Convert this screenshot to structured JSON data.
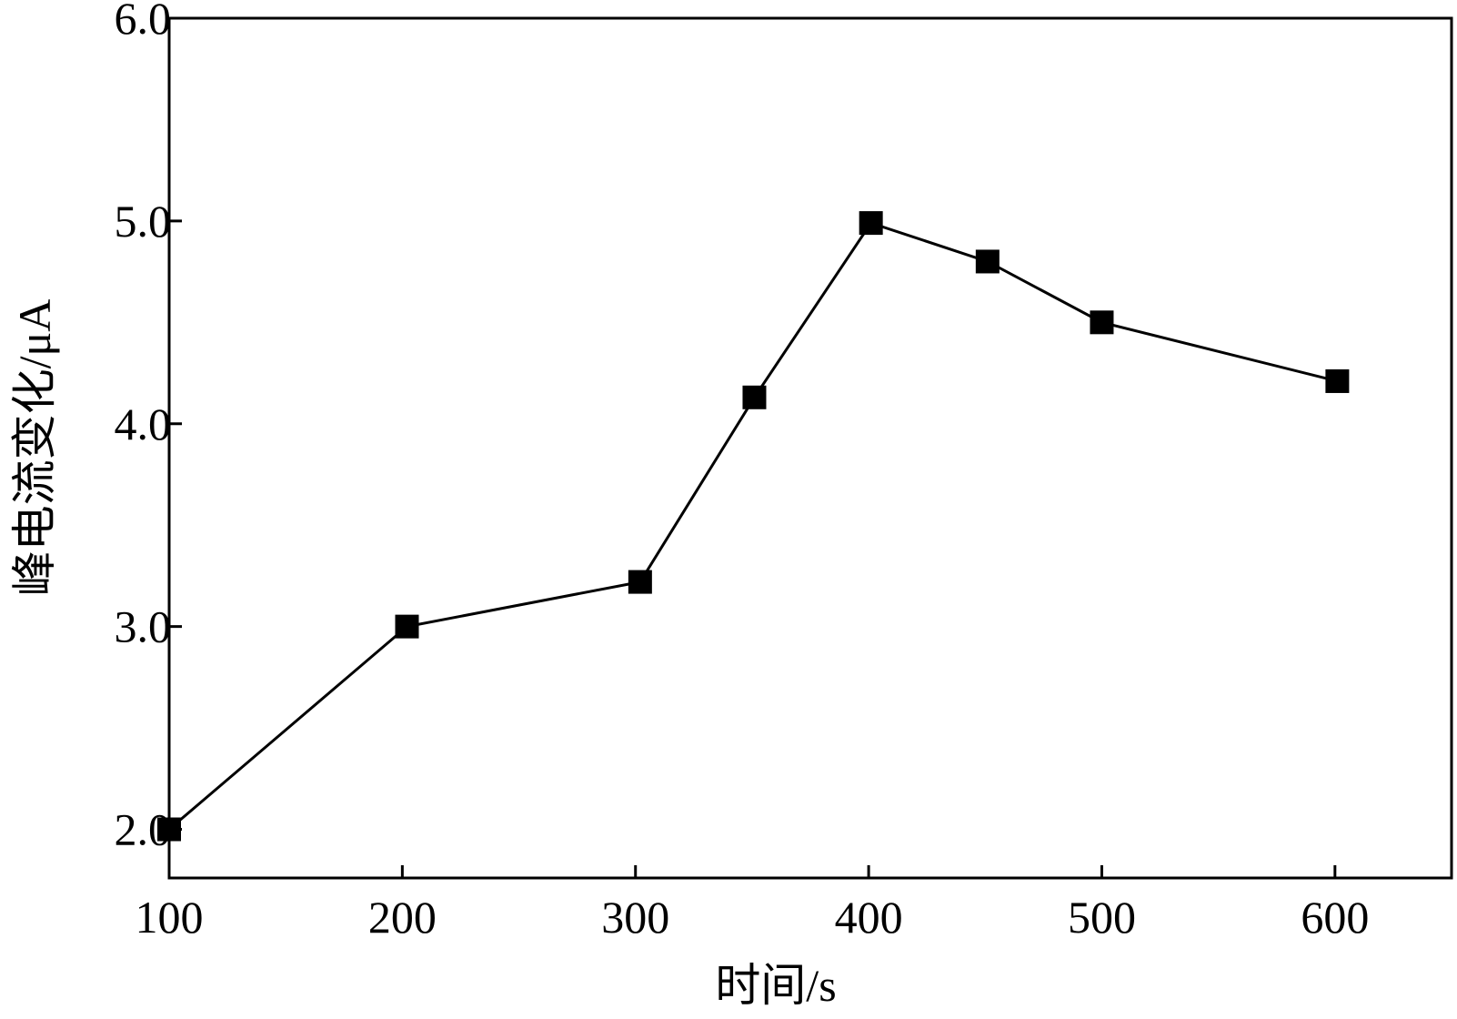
{
  "chart_data": {
    "type": "line",
    "title": "",
    "xlabel": "时间/s",
    "ylabel": "峰电流变化/μA",
    "x_ticks": [
      "100",
      "200",
      "300",
      "400",
      "500",
      "600"
    ],
    "y_ticks": [
      "2.0",
      "3.0",
      "4.0",
      "5.0",
      "6.0"
    ],
    "xlim": [
      100,
      650
    ],
    "ylim": [
      1.76,
      6.0
    ],
    "grid": false,
    "legend": "none",
    "marker": "square",
    "color": "#000000",
    "series": [
      {
        "x": [
          100,
          202,
          302,
          351,
          401,
          451,
          500,
          601
        ],
        "y": [
          2.0,
          3.0,
          3.22,
          4.13,
          4.99,
          4.8,
          4.5,
          4.21
        ]
      }
    ]
  }
}
